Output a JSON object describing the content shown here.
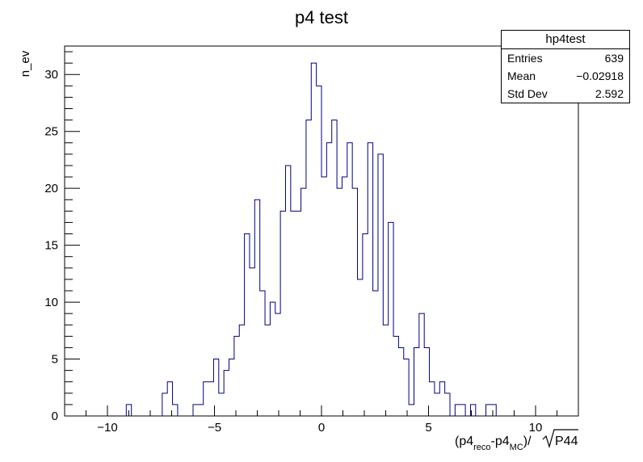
{
  "chart_data": {
    "type": "bar",
    "title": "p4 test",
    "ylabel": "n_ev",
    "xlabel_parts": {
      "open": "(p4",
      "sub1": "reco",
      "minus": "-p4",
      "sub2": "MC",
      "close": ")/",
      "radicand": "P44"
    },
    "xlim": [
      -12,
      12
    ],
    "ylim": [
      0,
      32.5
    ],
    "x_ticks": [
      -10,
      -5,
      0,
      5,
      10
    ],
    "x_tick_labels": [
      "−10",
      "−5",
      "0",
      "5",
      "10"
    ],
    "y_ticks": [
      0,
      5,
      10,
      15,
      20,
      25,
      30
    ],
    "y_tick_labels": [
      "0",
      "5",
      "10",
      "15",
      "20",
      "25",
      "30"
    ],
    "bin_width": 0.24,
    "bins": [
      {
        "x": -9.12,
        "y": 1
      },
      {
        "x": -7.44,
        "y": 2
      },
      {
        "x": -7.2,
        "y": 3
      },
      {
        "x": -6.96,
        "y": 1
      },
      {
        "x": -6.0,
        "y": 1
      },
      {
        "x": -5.76,
        "y": 1
      },
      {
        "x": -5.52,
        "y": 3
      },
      {
        "x": -5.28,
        "y": 3
      },
      {
        "x": -5.04,
        "y": 5
      },
      {
        "x": -4.8,
        "y": 2
      },
      {
        "x": -4.56,
        "y": 4
      },
      {
        "x": -4.32,
        "y": 5
      },
      {
        "x": -4.08,
        "y": 7
      },
      {
        "x": -3.84,
        "y": 8
      },
      {
        "x": -3.6,
        "y": 16
      },
      {
        "x": -3.36,
        "y": 13
      },
      {
        "x": -3.12,
        "y": 19
      },
      {
        "x": -2.88,
        "y": 11
      },
      {
        "x": -2.64,
        "y": 8
      },
      {
        "x": -2.4,
        "y": 10
      },
      {
        "x": -2.16,
        "y": 9
      },
      {
        "x": -1.92,
        "y": 18
      },
      {
        "x": -1.68,
        "y": 22
      },
      {
        "x": -1.44,
        "y": 18
      },
      {
        "x": -1.2,
        "y": 18
      },
      {
        "x": -0.96,
        "y": 20
      },
      {
        "x": -0.72,
        "y": 26
      },
      {
        "x": -0.48,
        "y": 31
      },
      {
        "x": -0.24,
        "y": 29
      },
      {
        "x": 0.0,
        "y": 21
      },
      {
        "x": 0.24,
        "y": 24
      },
      {
        "x": 0.48,
        "y": 26
      },
      {
        "x": 0.72,
        "y": 20
      },
      {
        "x": 0.96,
        "y": 21
      },
      {
        "x": 1.2,
        "y": 24
      },
      {
        "x": 1.44,
        "y": 20
      },
      {
        "x": 1.68,
        "y": 12
      },
      {
        "x": 1.92,
        "y": 16
      },
      {
        "x": 2.16,
        "y": 24
      },
      {
        "x": 2.4,
        "y": 11
      },
      {
        "x": 2.64,
        "y": 23
      },
      {
        "x": 2.88,
        "y": 8
      },
      {
        "x": 3.12,
        "y": 17
      },
      {
        "x": 3.36,
        "y": 7
      },
      {
        "x": 3.6,
        "y": 6
      },
      {
        "x": 3.84,
        "y": 5
      },
      {
        "x": 4.08,
        "y": 1
      },
      {
        "x": 4.32,
        "y": 6
      },
      {
        "x": 4.56,
        "y": 9
      },
      {
        "x": 4.8,
        "y": 6
      },
      {
        "x": 5.04,
        "y": 3
      },
      {
        "x": 5.28,
        "y": 2
      },
      {
        "x": 5.52,
        "y": 3
      },
      {
        "x": 5.76,
        "y": 2
      },
      {
        "x": 6.24,
        "y": 1
      },
      {
        "x": 6.48,
        "y": 1
      },
      {
        "x": 6.96,
        "y": 1
      },
      {
        "x": 7.68,
        "y": 1
      },
      {
        "x": 7.92,
        "y": 1
      }
    ],
    "line_color": "#000080",
    "grid": false
  },
  "stats_box": {
    "title": "hp4test",
    "rows": [
      {
        "label": "Entries",
        "value": "639"
      },
      {
        "label": "Mean",
        "value": "−0.02918"
      },
      {
        "label": "Std Dev",
        "value": "2.592"
      }
    ]
  }
}
